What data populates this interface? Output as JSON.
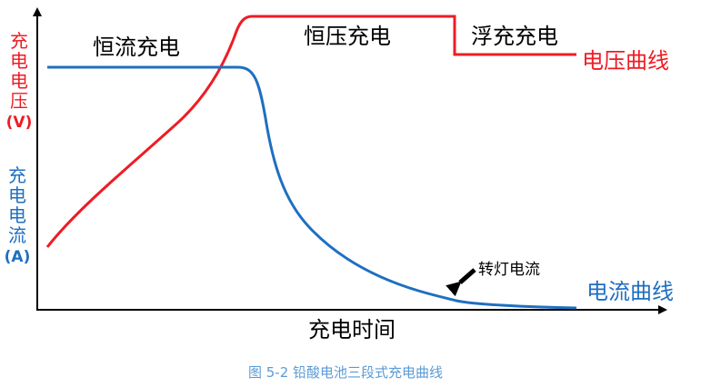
{
  "chart_data": {
    "type": "line",
    "xlabel": "充电时间",
    "ylabel_voltage": [
      "充",
      "电",
      "电",
      "压"
    ],
    "ylabel_voltage_unit": "(V)",
    "ylabel_current": [
      "充",
      "电",
      "电",
      "流"
    ],
    "ylabel_current_unit": "(A)",
    "stages": [
      {
        "name": "恒流充电"
      },
      {
        "name": "恒压充电"
      },
      {
        "name": "浮充充电"
      }
    ],
    "series": [
      {
        "name": "电压曲线",
        "color": "#ee1c24"
      },
      {
        "name": "电流曲线",
        "color": "#1f6fc0"
      }
    ],
    "annotation": "转灯电流",
    "caption": "图 5-2  铅酸电池三段式充电曲线",
    "grid": false,
    "axis_ticks": false
  }
}
